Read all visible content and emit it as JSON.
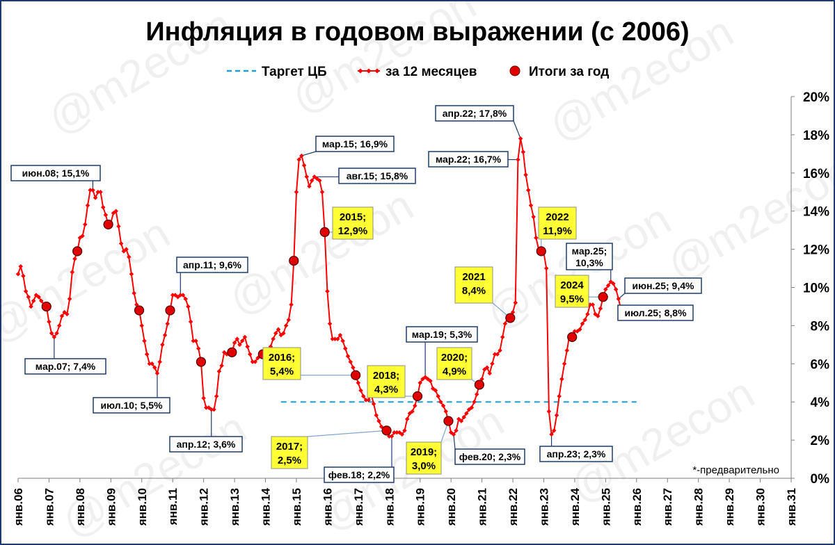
{
  "chart_data": {
    "type": "line",
    "title": "Инфляция в годовом выражении (с 2006)",
    "legend": {
      "placement": "top",
      "items": [
        {
          "label": "Таргет ЦБ",
          "style": "dashed",
          "color": "#1aa0d8"
        },
        {
          "label": "за 12 месяцев",
          "style": "line-marker",
          "color": "#ff0000"
        },
        {
          "label": "Итоги за год",
          "style": "dot",
          "color": "#e00000"
        }
      ]
    },
    "x_axis": {
      "type": "date",
      "tick_labels": [
        "янв.06",
        "янв.07",
        "янв.08",
        "янв.09",
        "янв.10",
        "янв.11",
        "янв.12",
        "янв.13",
        "янв.14",
        "янв.15",
        "янв.16",
        "янв.17",
        "янв.18",
        "янв.19",
        "янв.20",
        "янв.21",
        "янв.22",
        "янв.23",
        "янв.24",
        "янв.25",
        "янв.26",
        "янв.27",
        "янв.28",
        "янв.29",
        "янв.30",
        "янв.31"
      ],
      "range": [
        "2006-01",
        "2031-01"
      ]
    },
    "y_axis": {
      "tick_labels": [
        "0%",
        "2%",
        "4%",
        "6%",
        "8%",
        "10%",
        "12%",
        "14%",
        "16%",
        "18%",
        "20%"
      ],
      "ylim": [
        0,
        20
      ],
      "side": "right"
    },
    "grid": false,
    "series": [
      {
        "name": "за 12 месяцев",
        "color": "#ff0000",
        "x": [
          "2006-01",
          "2006-02",
          "2006-03",
          "2006-04",
          "2006-05",
          "2006-06",
          "2006-07",
          "2006-08",
          "2006-09",
          "2006-10",
          "2006-11",
          "2006-12",
          "2007-01",
          "2007-02",
          "2007-03",
          "2007-04",
          "2007-05",
          "2007-06",
          "2007-07",
          "2007-08",
          "2007-09",
          "2007-10",
          "2007-11",
          "2007-12",
          "2008-01",
          "2008-02",
          "2008-03",
          "2008-04",
          "2008-05",
          "2008-06",
          "2008-07",
          "2008-08",
          "2008-09",
          "2008-10",
          "2008-11",
          "2008-12",
          "2009-01",
          "2009-02",
          "2009-03",
          "2009-04",
          "2009-05",
          "2009-06",
          "2009-07",
          "2009-08",
          "2009-09",
          "2009-10",
          "2009-11",
          "2009-12",
          "2010-01",
          "2010-02",
          "2010-03",
          "2010-04",
          "2010-05",
          "2010-06",
          "2010-07",
          "2010-08",
          "2010-09",
          "2010-10",
          "2010-11",
          "2010-12",
          "2011-01",
          "2011-02",
          "2011-03",
          "2011-04",
          "2011-05",
          "2011-06",
          "2011-07",
          "2011-08",
          "2011-09",
          "2011-10",
          "2011-11",
          "2011-12",
          "2012-01",
          "2012-02",
          "2012-03",
          "2012-04",
          "2012-05",
          "2012-06",
          "2012-07",
          "2012-08",
          "2012-09",
          "2012-10",
          "2012-11",
          "2012-12",
          "2013-01",
          "2013-02",
          "2013-03",
          "2013-04",
          "2013-05",
          "2013-06",
          "2013-07",
          "2013-08",
          "2013-09",
          "2013-10",
          "2013-11",
          "2013-12",
          "2014-01",
          "2014-02",
          "2014-03",
          "2014-04",
          "2014-05",
          "2014-06",
          "2014-07",
          "2014-08",
          "2014-09",
          "2014-10",
          "2014-11",
          "2014-12",
          "2015-01",
          "2015-02",
          "2015-03",
          "2015-04",
          "2015-05",
          "2015-06",
          "2015-07",
          "2015-08",
          "2015-09",
          "2015-10",
          "2015-11",
          "2015-12",
          "2016-01",
          "2016-02",
          "2016-03",
          "2016-04",
          "2016-05",
          "2016-06",
          "2016-07",
          "2016-08",
          "2016-09",
          "2016-10",
          "2016-11",
          "2016-12",
          "2017-01",
          "2017-02",
          "2017-03",
          "2017-04",
          "2017-05",
          "2017-06",
          "2017-07",
          "2017-08",
          "2017-09",
          "2017-10",
          "2017-11",
          "2017-12",
          "2018-01",
          "2018-02",
          "2018-03",
          "2018-04",
          "2018-05",
          "2018-06",
          "2018-07",
          "2018-08",
          "2018-09",
          "2018-10",
          "2018-11",
          "2018-12",
          "2019-01",
          "2019-02",
          "2019-03",
          "2019-04",
          "2019-05",
          "2019-06",
          "2019-07",
          "2019-08",
          "2019-09",
          "2019-10",
          "2019-11",
          "2019-12",
          "2020-01",
          "2020-02",
          "2020-03",
          "2020-04",
          "2020-05",
          "2020-06",
          "2020-07",
          "2020-08",
          "2020-09",
          "2020-10",
          "2020-11",
          "2020-12",
          "2021-01",
          "2021-02",
          "2021-03",
          "2021-04",
          "2021-05",
          "2021-06",
          "2021-07",
          "2021-08",
          "2021-09",
          "2021-10",
          "2021-11",
          "2021-12",
          "2022-01",
          "2022-02",
          "2022-03",
          "2022-04",
          "2022-05",
          "2022-06",
          "2022-07",
          "2022-08",
          "2022-09",
          "2022-10",
          "2022-11",
          "2022-12",
          "2023-01",
          "2023-02",
          "2023-03",
          "2023-04",
          "2023-05",
          "2023-06",
          "2023-07",
          "2023-08",
          "2023-09",
          "2023-10",
          "2023-11",
          "2023-12",
          "2024-01",
          "2024-02",
          "2024-03",
          "2024-04",
          "2024-05",
          "2024-06",
          "2024-07",
          "2024-08",
          "2024-09",
          "2024-10",
          "2024-11",
          "2024-12",
          "2025-01",
          "2025-02",
          "2025-03",
          "2025-04",
          "2025-05",
          "2025-06",
          "2025-07"
        ],
        "values": [
          10.7,
          11.1,
          10.6,
          9.8,
          9.5,
          9.0,
          9.3,
          9.6,
          9.5,
          9.3,
          9.1,
          9.0,
          8.2,
          7.6,
          7.4,
          7.6,
          8.0,
          8.5,
          8.7,
          8.6,
          9.4,
          10.8,
          11.5,
          11.9,
          12.6,
          12.7,
          13.3,
          14.3,
          15.1,
          15.1,
          14.7,
          15.0,
          15.0,
          14.2,
          13.8,
          13.3,
          13.4,
          13.9,
          14.0,
          13.2,
          12.3,
          11.9,
          12.0,
          11.6,
          10.7,
          9.7,
          9.1,
          8.8,
          8.0,
          7.2,
          6.5,
          6.0,
          6.0,
          5.8,
          5.5,
          6.1,
          7.0,
          7.5,
          8.1,
          8.8,
          9.6,
          9.6,
          9.5,
          9.6,
          9.6,
          9.4,
          9.0,
          8.2,
          7.2,
          7.2,
          6.8,
          6.1,
          4.2,
          3.7,
          3.7,
          3.6,
          3.6,
          4.3,
          5.6,
          5.9,
          6.6,
          6.5,
          6.5,
          6.6,
          7.1,
          7.3,
          7.0,
          7.2,
          7.4,
          6.9,
          6.5,
          6.1,
          6.1,
          6.3,
          6.5,
          6.5,
          6.1,
          6.2,
          6.9,
          7.3,
          7.6,
          7.8,
          7.5,
          7.6,
          8.0,
          8.3,
          9.1,
          11.4,
          15.0,
          16.7,
          16.9,
          16.4,
          15.8,
          15.3,
          15.6,
          15.8,
          15.7,
          15.6,
          15.0,
          12.9,
          9.8,
          8.1,
          7.3,
          7.3,
          7.3,
          7.5,
          7.2,
          6.8,
          6.4,
          6.1,
          5.8,
          5.4,
          5.0,
          4.6,
          4.3,
          4.1,
          4.1,
          4.4,
          3.9,
          3.3,
          3.0,
          2.7,
          2.5,
          2.5,
          2.2,
          2.2,
          2.4,
          2.4,
          2.4,
          2.3,
          2.5,
          3.1,
          3.4,
          3.5,
          3.8,
          4.3,
          5.0,
          5.2,
          5.3,
          5.2,
          5.1,
          4.7,
          4.6,
          4.3,
          4.0,
          3.8,
          3.5,
          3.0,
          2.4,
          2.3,
          2.5,
          3.1,
          3.0,
          3.2,
          3.4,
          3.6,
          3.7,
          4.0,
          4.4,
          4.9,
          5.2,
          5.7,
          5.8,
          5.5,
          6.0,
          6.5,
          6.5,
          6.7,
          7.4,
          8.1,
          8.4,
          8.4,
          8.7,
          9.2,
          16.7,
          17.8,
          17.1,
          15.9,
          15.1,
          14.3,
          13.7,
          12.6,
          12.0,
          11.9,
          11.8,
          11.0,
          3.5,
          2.3,
          2.5,
          3.3,
          4.3,
          5.2,
          6.0,
          6.7,
          7.5,
          7.4,
          7.7,
          7.7,
          7.8,
          8.1,
          8.3,
          8.6,
          9.1,
          9.1,
          8.6,
          8.5,
          8.9,
          9.5,
          9.9,
          10.1,
          10.3,
          10.2,
          9.9,
          9.4,
          8.8
        ]
      },
      {
        "name": "Итоги за год",
        "color": "#e00000",
        "x": [
          "2006-12",
          "2007-12",
          "2008-12",
          "2009-12",
          "2010-12",
          "2011-12",
          "2012-12",
          "2013-12",
          "2014-12",
          "2015-12",
          "2016-12",
          "2017-12",
          "2018-12",
          "2019-12",
          "2020-12",
          "2021-12",
          "2022-12",
          "2023-12",
          "2024-12"
        ],
        "values": [
          9.0,
          11.9,
          13.3,
          8.8,
          8.8,
          6.1,
          6.6,
          6.5,
          11.4,
          12.9,
          5.4,
          2.5,
          4.3,
          3.0,
          4.9,
          8.4,
          11.9,
          7.4,
          9.5
        ]
      },
      {
        "name": "Таргет ЦБ",
        "color": "#1aa0d8",
        "x": [
          "2014-07",
          "2026-01"
        ],
        "values": [
          4.0,
          4.0
        ]
      }
    ],
    "annotations": [
      {
        "text": "июн.08; 15,1%",
        "x": "2008-06",
        "y": 15.1
      },
      {
        "text": "мар.07; 7,4%",
        "x": "2007-03",
        "y": 7.4
      },
      {
        "text": "июл.10; 5,5%",
        "x": "2010-07",
        "y": 5.5
      },
      {
        "text": "апр.11; 9,6%",
        "x": "2011-04",
        "y": 9.6
      },
      {
        "text": "апр.12; 3,6%",
        "x": "2012-04",
        "y": 3.6
      },
      {
        "text": "мар.15; 16,9%",
        "x": "2015-03",
        "y": 16.9
      },
      {
        "text": "авг.15; 15,8%",
        "x": "2015-08",
        "y": 15.8
      },
      {
        "text": "фев.18; 2,2%",
        "x": "2018-02",
        "y": 2.2
      },
      {
        "text": "мар.19; 5,3%",
        "x": "2019-03",
        "y": 5.3
      },
      {
        "text": "фев.20; 2,3%",
        "x": "2020-02",
        "y": 2.3
      },
      {
        "text": "апр.22; 17,8%",
        "x": "2022-04",
        "y": 17.8
      },
      {
        "text": "мар.22; 16,7%",
        "x": "2022-03",
        "y": 16.7
      },
      {
        "text": "апр.23; 2,3%",
        "x": "2023-04",
        "y": 2.3
      },
      {
        "text": "мар.25;\n10,3%",
        "x": "2025-03",
        "y": 10.3
      },
      {
        "text": "июн.25; 9,4%",
        "x": "2025-06",
        "y": 9.4
      },
      {
        "text": "июл.25; 8,8%",
        "x": "2025-07",
        "y": 8.8
      }
    ],
    "year_labels": [
      {
        "text": "2015;\n12,9%",
        "x": "2015-12",
        "y": 12.9
      },
      {
        "text": "2016;\n5,4%",
        "x": "2016-12",
        "y": 5.4
      },
      {
        "text": "2017;\n2,5%",
        "x": "2017-12",
        "y": 2.5
      },
      {
        "text": "2018;\n4,3%",
        "x": "2018-12",
        "y": 4.3
      },
      {
        "text": "2019;\n3,0%",
        "x": "2019-12",
        "y": 3.0
      },
      {
        "text": "2020;\n4,9%",
        "x": "2020-12",
        "y": 4.9
      },
      {
        "text": "2021\n8,4%",
        "x": "2021-12",
        "y": 8.4
      },
      {
        "text": "2022\n11,9%",
        "x": "2022-12",
        "y": 11.9
      },
      {
        "text": "2024\n9,5%",
        "x": "2024-12",
        "y": 9.5
      }
    ],
    "note": "*-предварительно",
    "watermark": "@m2econ"
  }
}
